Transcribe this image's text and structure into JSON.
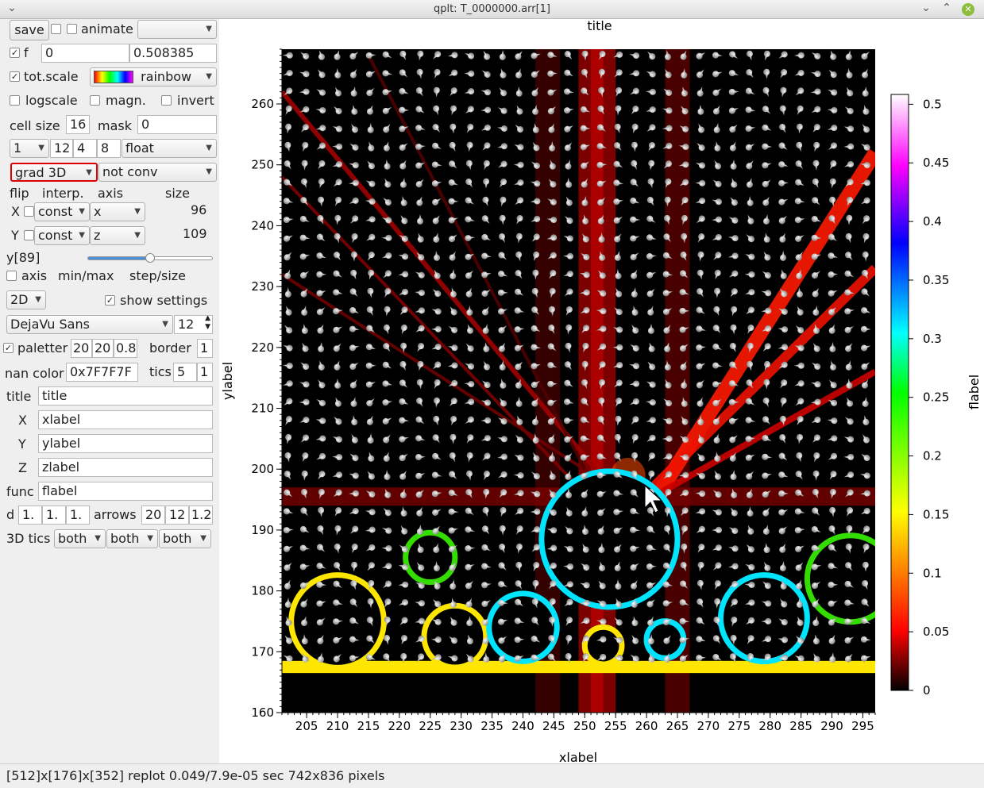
{
  "window": {
    "title": "qplt: T_0000000.arr[1]"
  },
  "controls": {
    "save_label": "save",
    "animate_label": "animate",
    "f_label": "f",
    "f_min": "0",
    "f_max": "0.508385",
    "totscale_label": "tot.scale",
    "palette_name": "rainbow",
    "logscale_label": "logscale",
    "magn_label": "magn.",
    "invert_label": "invert",
    "cellsize_label": "cell size",
    "cellsize_value": "16",
    "mask_label": "mask",
    "mask_value": "0",
    "combo_1": "1",
    "field_12": "12",
    "field_4": "4",
    "field_8": "8",
    "type_value": "float",
    "mode_value": "grad 3D",
    "conv_value": "not conv",
    "flip_label": "flip",
    "interp_label": "interp.",
    "axis_label": "axis",
    "size_label": "size",
    "x_row_label": "X",
    "x_interp": "const",
    "x_axis": "x",
    "x_size": "96",
    "y_row_label": "Y",
    "y_interp": "const",
    "y_axis": "z",
    "y_size": "109",
    "slider_label": "y[89]",
    "slider_value": 0.5,
    "axis_cb_label": "axis",
    "minmax_label": "min/max",
    "stepsize_label": "step/size",
    "dim_value": "2D",
    "show_settings_label": "show settings",
    "font_value": "DejaVu Sans",
    "font_size": "12",
    "paletter_label": "paletter",
    "pal_1": "20",
    "pal_2": "20",
    "pal_3": "0.8",
    "border_label": "border",
    "border_value": "1",
    "nancolor_label": "nan color",
    "nancolor_value": "0x7F7F7F",
    "tics_label": "tics",
    "tics_1": "5",
    "tics_2": "1",
    "title_label": "title",
    "title_value": "title",
    "x_label_label": "X",
    "x_label_value": "xlabel",
    "y_label_label": "Y",
    "y_label_value": "ylabel",
    "z_label_label": "Z",
    "z_label_value": "zlabel",
    "func_label": "func",
    "func_value": "flabel",
    "d_label": "d",
    "d_1": "1.",
    "d_2": "1.",
    "d_3": "1.",
    "arrows_label": "arrows",
    "arrows_1": "20",
    "arrows_2": "12",
    "arrows_3": "1.2",
    "tics3d_label": "3D tics",
    "tics3d_1": "both",
    "tics3d_2": "both",
    "tics3d_3": "both"
  },
  "status_text": "[512]x[176]x[352] replot 0.049/7.9e-05 sec  742x836 pixels",
  "chart_data": {
    "type": "heatmap",
    "title": "title",
    "xlabel": "xlabel",
    "ylabel": "ylabel",
    "colorbar_label": "flabel",
    "xlim": [
      201,
      297
    ],
    "ylim": [
      160,
      269
    ],
    "x_ticks": [
      205,
      210,
      215,
      220,
      225,
      230,
      235,
      240,
      245,
      250,
      255,
      260,
      265,
      270,
      275,
      280,
      285,
      290,
      295
    ],
    "y_ticks": [
      160,
      170,
      180,
      190,
      200,
      210,
      220,
      230,
      240,
      250,
      260
    ],
    "colorbar_range": [
      0,
      0.508385
    ],
    "colorbar_ticks": [
      0,
      0.05,
      0.1,
      0.15,
      0.2,
      0.25,
      0.3,
      0.35,
      0.4,
      0.45,
      0.5
    ],
    "palette": "rainbow",
    "colors": {
      "low": "#000000",
      "mid": "#ff0000",
      "high": "#ffffff"
    }
  }
}
